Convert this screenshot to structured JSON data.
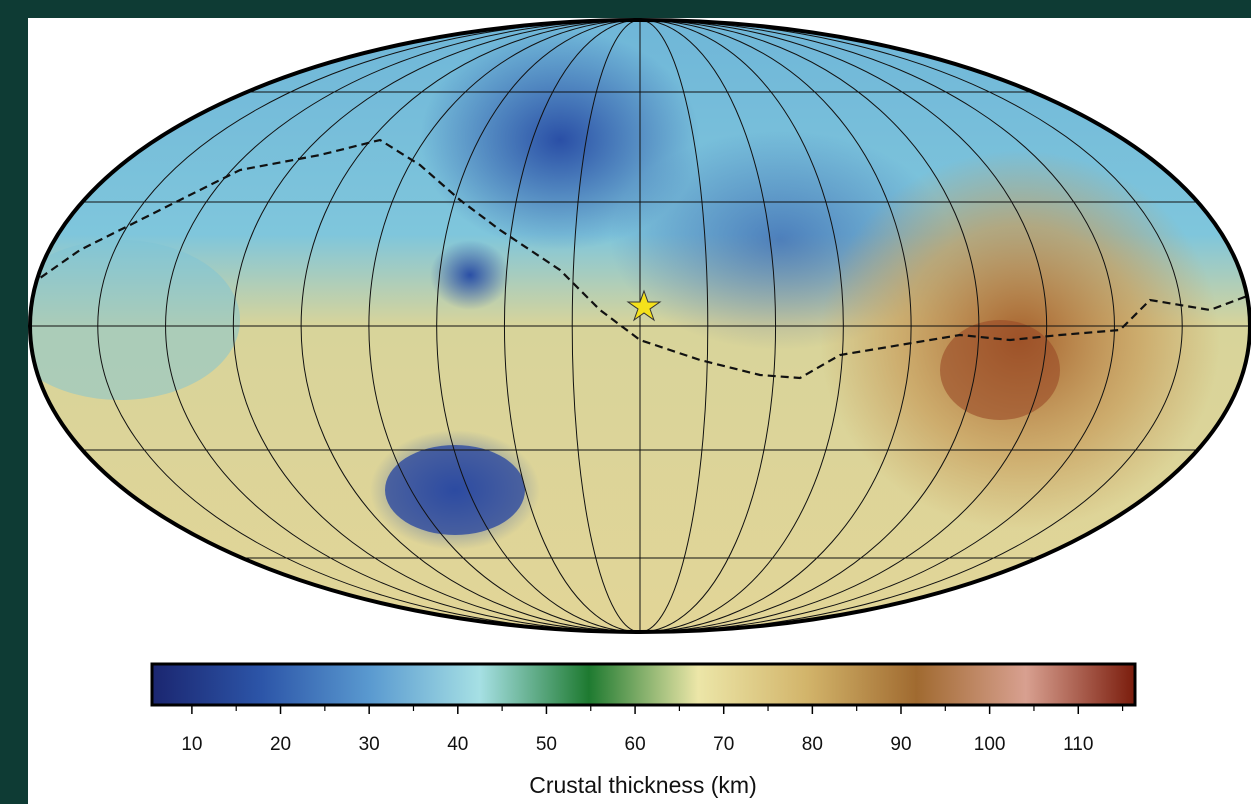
{
  "colorbar": {
    "label": "Crustal thickness (km)",
    "range": [
      5.5,
      116.4
    ],
    "ticks": [
      10,
      20,
      30,
      40,
      50,
      60,
      70,
      80,
      90,
      100,
      110
    ],
    "minor_ticks": [
      15,
      25,
      35,
      45,
      55,
      65,
      75,
      85,
      95,
      105,
      115
    ],
    "colors": [
      "#1b2670",
      "#2c55a8",
      "#5a9ad0",
      "#a6e0e4",
      "#1e7a30",
      "#ece6a8",
      "#d2b46a",
      "#a06a30",
      "#d8a090",
      "#7a1c0c"
    ]
  }
}
